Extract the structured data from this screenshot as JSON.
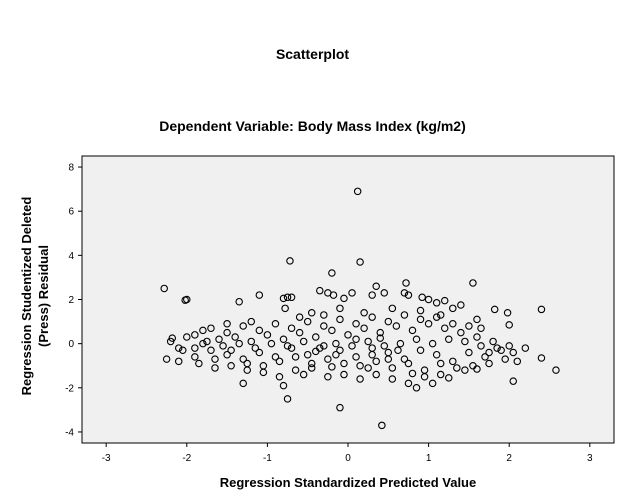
{
  "chart_data": {
    "type": "scatter",
    "title": "Scatterplot",
    "subtitle": "Dependent Variable: Body Mass Index (kg/m2)",
    "xlabel": "Regression Standardized Predicted Value",
    "ylabel": "Regression Studentized Deleted (Press) Residual",
    "xlim": [
      -3.3,
      3.3
    ],
    "ylim": [
      -4.5,
      8.5
    ],
    "xticks": [
      -3,
      -2,
      -1,
      0,
      1,
      2,
      3
    ],
    "yticks": [
      -4,
      -2,
      0,
      2,
      4,
      6,
      8
    ],
    "grid": false,
    "marker": "open-circle",
    "colors": {
      "plot_background": "#f0f0f0",
      "marker": "#000000"
    },
    "points": [
      [
        0.12,
        6.9
      ],
      [
        0.15,
        3.7
      ],
      [
        -0.72,
        3.75
      ],
      [
        -0.2,
        3.2
      ],
      [
        1.55,
        2.75
      ],
      [
        0.72,
        2.75
      ],
      [
        -2.28,
        2.5
      ],
      [
        -2.02,
        1.97
      ],
      [
        -2.0,
        2.0
      ],
      [
        -1.35,
        1.9
      ],
      [
        -1.1,
        2.2
      ],
      [
        -0.8,
        2.05
      ],
      [
        -0.75,
        2.1
      ],
      [
        -0.7,
        2.1
      ],
      [
        -0.35,
        2.4
      ],
      [
        -0.25,
        2.3
      ],
      [
        -0.18,
        2.2
      ],
      [
        -0.05,
        2.05
      ],
      [
        0.05,
        2.3
      ],
      [
        0.3,
        2.2
      ],
      [
        0.35,
        2.6
      ],
      [
        0.45,
        2.3
      ],
      [
        0.7,
        2.3
      ],
      [
        0.75,
        2.2
      ],
      [
        0.92,
        2.1
      ],
      [
        1.0,
        2.0
      ],
      [
        1.1,
        1.85
      ],
      [
        1.2,
        1.95
      ],
      [
        1.3,
        1.6
      ],
      [
        1.4,
        1.75
      ],
      [
        1.6,
        1.1
      ],
      [
        1.82,
        1.55
      ],
      [
        1.98,
        1.4
      ],
      [
        2.4,
        1.55
      ],
      [
        2.0,
        0.85
      ],
      [
        1.65,
        0.7
      ],
      [
        -0.78,
        1.6
      ],
      [
        -0.6,
        1.2
      ],
      [
        -0.45,
        1.4
      ],
      [
        -0.3,
        1.3
      ],
      [
        -0.1,
        1.6
      ],
      [
        0.2,
        1.4
      ],
      [
        0.55,
        1.6
      ],
      [
        0.9,
        1.5
      ],
      [
        1.15,
        1.3
      ],
      [
        -1.2,
        1.0
      ],
      [
        -1.5,
        0.9
      ],
      [
        -1.8,
        0.6
      ],
      [
        -2.0,
        0.3
      ],
      [
        -2.1,
        -0.2
      ],
      [
        -2.2,
        0.1
      ],
      [
        -2.25,
        -0.7
      ],
      [
        -2.1,
        -0.8
      ],
      [
        -1.9,
        -0.6
      ],
      [
        -1.7,
        -0.3
      ],
      [
        -1.5,
        -0.5
      ],
      [
        -1.3,
        -0.7
      ],
      [
        -1.1,
        -0.4
      ],
      [
        -0.9,
        -0.6
      ],
      [
        -0.7,
        -0.2
      ],
      [
        -0.5,
        -0.5
      ],
      [
        -0.3,
        -0.1
      ],
      [
        -0.1,
        -0.3
      ],
      [
        0.1,
        -0.6
      ],
      [
        0.3,
        -0.2
      ],
      [
        0.5,
        -0.4
      ],
      [
        0.7,
        -0.7
      ],
      [
        0.9,
        -0.3
      ],
      [
        1.1,
        -0.5
      ],
      [
        1.3,
        -0.8
      ],
      [
        1.5,
        -0.4
      ],
      [
        1.7,
        -0.6
      ],
      [
        1.9,
        -0.3
      ],
      [
        2.05,
        -0.4
      ],
      [
        2.2,
        -0.2
      ],
      [
        2.4,
        -0.65
      ],
      [
        2.58,
        -1.2
      ],
      [
        2.05,
        -1.7
      ],
      [
        1.75,
        -0.9
      ],
      [
        1.45,
        -1.2
      ],
      [
        1.15,
        -1.4
      ],
      [
        0.95,
        -1.5
      ],
      [
        0.75,
        -1.8
      ],
      [
        0.55,
        -1.6
      ],
      [
        0.35,
        -1.4
      ],
      [
        0.15,
        -1.6
      ],
      [
        -0.05,
        -1.4
      ],
      [
        -0.25,
        -1.5
      ],
      [
        -0.45,
        -1.1
      ],
      [
        -0.65,
        -1.2
      ],
      [
        -0.85,
        -1.5
      ],
      [
        -1.05,
        -1.3
      ],
      [
        -1.25,
        -1.2
      ],
      [
        -1.45,
        -1.0
      ],
      [
        -1.65,
        -1.1
      ],
      [
        -1.3,
        -1.8
      ],
      [
        -0.8,
        -1.9
      ],
      [
        -0.75,
        -2.5
      ],
      [
        -0.1,
        -2.9
      ],
      [
        0.42,
        -3.7
      ],
      [
        0.85,
        -2.0
      ],
      [
        1.05,
        -1.8
      ],
      [
        -1.8,
        0.0
      ],
      [
        -1.6,
        0.2
      ],
      [
        -1.4,
        0.3
      ],
      [
        -1.2,
        0.1
      ],
      [
        -1.0,
        0.4
      ],
      [
        -0.8,
        0.2
      ],
      [
        -0.6,
        0.5
      ],
      [
        -0.4,
        0.3
      ],
      [
        -0.2,
        0.6
      ],
      [
        0.0,
        0.4
      ],
      [
        0.2,
        0.7
      ],
      [
        0.4,
        0.5
      ],
      [
        0.6,
        0.8
      ],
      [
        0.8,
        0.6
      ],
      [
        1.0,
        0.9
      ],
      [
        1.2,
        0.7
      ],
      [
        1.4,
        0.5
      ],
      [
        1.6,
        0.3
      ],
      [
        1.8,
        0.1
      ],
      [
        2.0,
        -0.1
      ],
      [
        -1.9,
        0.4
      ],
      [
        -1.7,
        0.7
      ],
      [
        -1.5,
        0.5
      ],
      [
        -1.3,
        0.8
      ],
      [
        -1.1,
        0.6
      ],
      [
        -0.9,
        0.9
      ],
      [
        -0.7,
        0.7
      ],
      [
        -0.5,
        1.0
      ],
      [
        -0.3,
        0.8
      ],
      [
        -0.1,
        1.1
      ],
      [
        0.1,
        0.9
      ],
      [
        0.3,
        1.2
      ],
      [
        0.5,
        1.0
      ],
      [
        0.7,
        1.3
      ],
      [
        0.9,
        1.1
      ],
      [
        1.1,
        1.2
      ],
      [
        1.3,
        0.9
      ],
      [
        1.5,
        0.8
      ],
      [
        -2.05,
        -0.3
      ],
      [
        -1.85,
        -0.9
      ],
      [
        -1.65,
        -0.7
      ],
      [
        -1.45,
        -0.3
      ],
      [
        -1.25,
        -0.9
      ],
      [
        -1.05,
        -1.0
      ],
      [
        -0.85,
        -0.8
      ],
      [
        -0.65,
        -0.6
      ],
      [
        -0.45,
        -0.9
      ],
      [
        -0.25,
        -0.7
      ],
      [
        -0.05,
        -0.9
      ],
      [
        0.15,
        -1.0
      ],
      [
        0.35,
        -0.8
      ],
      [
        0.55,
        -1.1
      ],
      [
        0.75,
        -0.9
      ],
      [
        0.95,
        -1.2
      ],
      [
        1.15,
        -0.9
      ],
      [
        1.35,
        -1.1
      ],
      [
        1.55,
        -1.0
      ],
      [
        1.75,
        -0.4
      ],
      [
        1.95,
        -0.7
      ],
      [
        -1.75,
        0.1
      ],
      [
        -1.55,
        -0.1
      ],
      [
        -1.35,
        0.0
      ],
      [
        -1.15,
        -0.2
      ],
      [
        -0.95,
        0.0
      ],
      [
        -0.75,
        -0.1
      ],
      [
        -0.55,
        0.1
      ],
      [
        -0.35,
        -0.2
      ],
      [
        -0.15,
        0.0
      ],
      [
        0.05,
        -0.1
      ],
      [
        0.25,
        0.1
      ],
      [
        0.45,
        -0.1
      ],
      [
        0.65,
        0.0
      ],
      [
        0.85,
        0.2
      ],
      [
        1.05,
        0.0
      ],
      [
        1.25,
        0.2
      ],
      [
        1.45,
        0.1
      ],
      [
        1.65,
        -0.1
      ],
      [
        1.85,
        -0.2
      ],
      [
        -0.15,
        -0.5
      ],
      [
        0.3,
        -0.5
      ],
      [
        0.62,
        -0.3
      ],
      [
        0.4,
        0.25
      ],
      [
        0.1,
        0.2
      ],
      [
        -0.4,
        -0.35
      ],
      [
        0.5,
        -0.7
      ],
      [
        0.25,
        -1.1
      ],
      [
        -0.2,
        -1.05
      ],
      [
        0.8,
        -1.35
      ],
      [
        1.25,
        -1.55
      ],
      [
        -0.55,
        -1.4
      ],
      [
        1.6,
        -1.15
      ],
      [
        -1.9,
        -0.2
      ],
      [
        -2.18,
        0.25
      ],
      [
        2.1,
        -0.8
      ]
    ]
  }
}
